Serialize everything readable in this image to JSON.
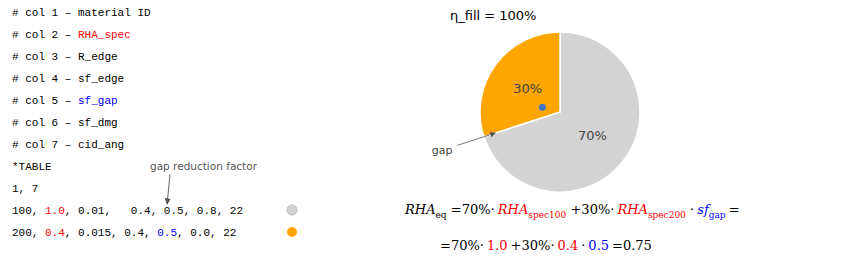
{
  "chart_data": {
    "type": "pie",
    "title": "η_fill = 100%",
    "values": [
      70,
      30
    ],
    "value_labels": [
      "70%",
      "30%"
    ],
    "colors": [
      "#d3d3d3",
      "#FFA500"
    ],
    "data_labels": true,
    "code_lines": [
      {
        "parts": [
          {
            "text": "# col 1 – material ID",
            "color": "black"
          }
        ]
      },
      {
        "parts": [
          {
            "text": "# col 2 – ",
            "color": "black"
          },
          {
            "text": "RHA_spec",
            "color": "red"
          }
        ]
      },
      {
        "parts": [
          {
            "text": "# col 3 – ",
            "color": "black"
          },
          {
            "text": "R_edge",
            "color": "black"
          }
        ]
      },
      {
        "parts": [
          {
            "text": "# col 4 – ",
            "color": "black"
          },
          {
            "text": "sf_edge",
            "color": "black"
          }
        ]
      },
      {
        "parts": [
          {
            "text": "# col 5 – ",
            "color": "black"
          },
          {
            "text": "sf_gap",
            "color": "blue"
          }
        ]
      },
      {
        "parts": [
          {
            "text": "# col 6 – ",
            "color": "black"
          },
          {
            "text": "sf_dmg",
            "color": "black"
          }
        ]
      },
      {
        "parts": [
          {
            "text": "# col 7 – ",
            "color": "black"
          },
          {
            "text": "cid_ang",
            "color": "black"
          }
        ]
      },
      {
        "parts": [
          {
            "text": "*TABLE",
            "color": "black"
          }
        ]
      },
      {
        "parts": [
          {
            "text": "1, 7",
            "color": "black"
          }
        ]
      },
      {
        "parts": [
          {
            "text": "100, ",
            "color": "black"
          },
          {
            "text": "1.0",
            "color": "red"
          },
          {
            "text": ", 0.01,   0.4, 0.5, 0.8, 22",
            "color": "black"
          }
        ],
        "color": "#d3d3d3"
      },
      {
        "parts": [
          {
            "text": "200, ",
            "color": "black"
          },
          {
            "text": "0.4",
            "color": "red"
          },
          {
            "text": ", 0.015, 0.4, ",
            "color": "black"
          },
          {
            "text": "0.5",
            "color": "blue"
          },
          {
            "text": ", 0.0, 22",
            "color": "black"
          }
        ],
        "color": "#FFA500"
      }
    ],
    "formula_lines": [
      {
        "parts": [
          {
            "text": "RHA",
            "sub": "eq",
            "color": "black"
          },
          {
            "text": "=70%·",
            "color": "black"
          },
          {
            "text": "RHA",
            "sub": "spec100",
            "color": "red"
          },
          {
            "text": "+30%·",
            "color": "black"
          },
          {
            "text": "RHA",
            "sub": "spec200",
            "color": "red"
          },
          {
            "text": "·",
            "color": "black"
          },
          {
            "text": "sf",
            "sub": "gap",
            "color": "blue"
          },
          {
            "text": "=",
            "color": "black"
          }
        ]
      },
      {
        "parts": [
          {
            "text": "=70%·",
            "color": "black"
          },
          {
            "text": "1.0",
            "color": "red"
          },
          {
            "text": "+30%·",
            "color": "black"
          },
          {
            "text": "0.4",
            "color": "red"
          },
          {
            "text": "·",
            "color": "black"
          },
          {
            "text": "0.5",
            "color": "blue"
          },
          {
            "text": "=0.75",
            "color": "black"
          }
        ]
      }
    ],
    "annotations": [
      {
        "text": "gap reduction factor"
      },
      {
        "text": "gap"
      },
      {
        "marker": "circle",
        "color": "#4472C4"
      }
    ]
  }
}
